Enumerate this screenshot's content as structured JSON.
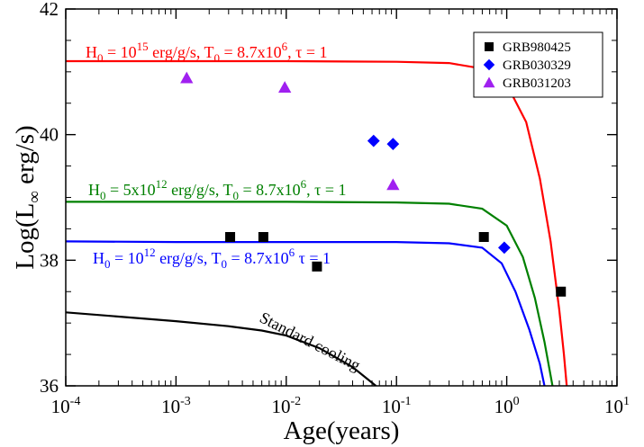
{
  "chart_data": {
    "type": "line",
    "xlabel": "Age(years)",
    "ylabel_main": "Log(L",
    "ylabel_sub": "∞",
    "ylabel_tail": " erg/s)",
    "xscale": "log",
    "xlim": [
      0.0001,
      10
    ],
    "ylim": [
      36,
      42
    ],
    "grid": false,
    "legend_position": "top-right",
    "x_ticks": [
      {
        "value": 0.0001,
        "base": "10",
        "exp": "-4"
      },
      {
        "value": 0.001,
        "base": "10",
        "exp": "-3"
      },
      {
        "value": 0.01,
        "base": "10",
        "exp": "-2"
      },
      {
        "value": 0.1,
        "base": "10",
        "exp": "-1"
      },
      {
        "value": 1,
        "base": "10",
        "exp": "0"
      },
      {
        "value": 10,
        "base": "10",
        "exp": "1"
      }
    ],
    "y_ticks": [
      {
        "value": 36,
        "label": "36"
      },
      {
        "value": 38,
        "label": "38"
      },
      {
        "value": 40,
        "label": "40"
      },
      {
        "value": 42,
        "label": "42"
      }
    ],
    "curves": [
      {
        "color": "#ff0000",
        "label_parts": [
          "H",
          "0",
          " = 10",
          "15",
          " erg/g/s, T",
          "0",
          " = 8.7x10",
          "6",
          ", τ = 1"
        ],
        "points": [
          [
            0.0001,
            41.17
          ],
          [
            0.001,
            41.17
          ],
          [
            0.01,
            41.17
          ],
          [
            0.1,
            41.16
          ],
          [
            0.3,
            41.14
          ],
          [
            0.6,
            41.05
          ],
          [
            1.0,
            40.8
          ],
          [
            1.5,
            40.2
          ],
          [
            2.0,
            39.3
          ],
          [
            2.5,
            38.3
          ],
          [
            3.0,
            37.2
          ],
          [
            3.3,
            36.5
          ],
          [
            3.5,
            36.0
          ]
        ]
      },
      {
        "color": "#008000",
        "label_parts": [
          "H",
          "0",
          " = 5x10",
          "12",
          " erg/g/s, T",
          "0",
          " = 8.7x10",
          "6",
          ", τ = 1"
        ],
        "points": [
          [
            0.0001,
            38.93
          ],
          [
            0.001,
            38.93
          ],
          [
            0.01,
            38.93
          ],
          [
            0.1,
            38.92
          ],
          [
            0.3,
            38.9
          ],
          [
            0.6,
            38.82
          ],
          [
            1.0,
            38.55
          ],
          [
            1.4,
            38.05
          ],
          [
            1.8,
            37.4
          ],
          [
            2.2,
            36.7
          ],
          [
            2.6,
            36.0
          ]
        ]
      },
      {
        "color": "#0000ff",
        "label_parts": [
          "H",
          "0",
          " = 10",
          "12",
          " erg/g/s, T",
          "0",
          " = 8.7x10",
          "6",
          " τ = 1"
        ],
        "points": [
          [
            0.0001,
            38.3
          ],
          [
            0.001,
            38.29
          ],
          [
            0.01,
            38.29
          ],
          [
            0.1,
            38.29
          ],
          [
            0.3,
            38.27
          ],
          [
            0.6,
            38.2
          ],
          [
            0.9,
            37.95
          ],
          [
            1.2,
            37.5
          ],
          [
            1.6,
            36.9
          ],
          [
            2.0,
            36.35
          ],
          [
            2.2,
            36.0
          ]
        ]
      },
      {
        "color": "#000000",
        "label_parts": [
          "Standard cooling"
        ],
        "points": [
          [
            0.0001,
            37.17
          ],
          [
            0.001,
            37.03
          ],
          [
            0.003,
            36.95
          ],
          [
            0.006,
            36.88
          ],
          [
            0.01,
            36.8
          ],
          [
            0.02,
            36.6
          ],
          [
            0.04,
            36.3
          ],
          [
            0.06,
            36.05
          ],
          [
            0.065,
            36.0
          ]
        ]
      }
    ],
    "series": [
      {
        "name": "GRB980425",
        "marker": "square",
        "color": "#000000",
        "points": [
          [
            0.0031,
            38.37
          ],
          [
            0.0062,
            38.37
          ],
          [
            0.019,
            37.9
          ],
          [
            0.62,
            38.37
          ],
          [
            3.1,
            37.5
          ]
        ]
      },
      {
        "name": "GRB030329",
        "marker": "diamond",
        "color": "#0000ff",
        "points": [
          [
            0.062,
            39.9
          ],
          [
            0.093,
            39.85
          ],
          [
            0.95,
            38.2
          ]
        ]
      },
      {
        "name": "GRB031203",
        "marker": "triangle",
        "color": "#a020f0",
        "points": [
          [
            0.00125,
            40.9
          ],
          [
            0.0097,
            40.75
          ],
          [
            0.093,
            39.2
          ]
        ]
      }
    ]
  }
}
